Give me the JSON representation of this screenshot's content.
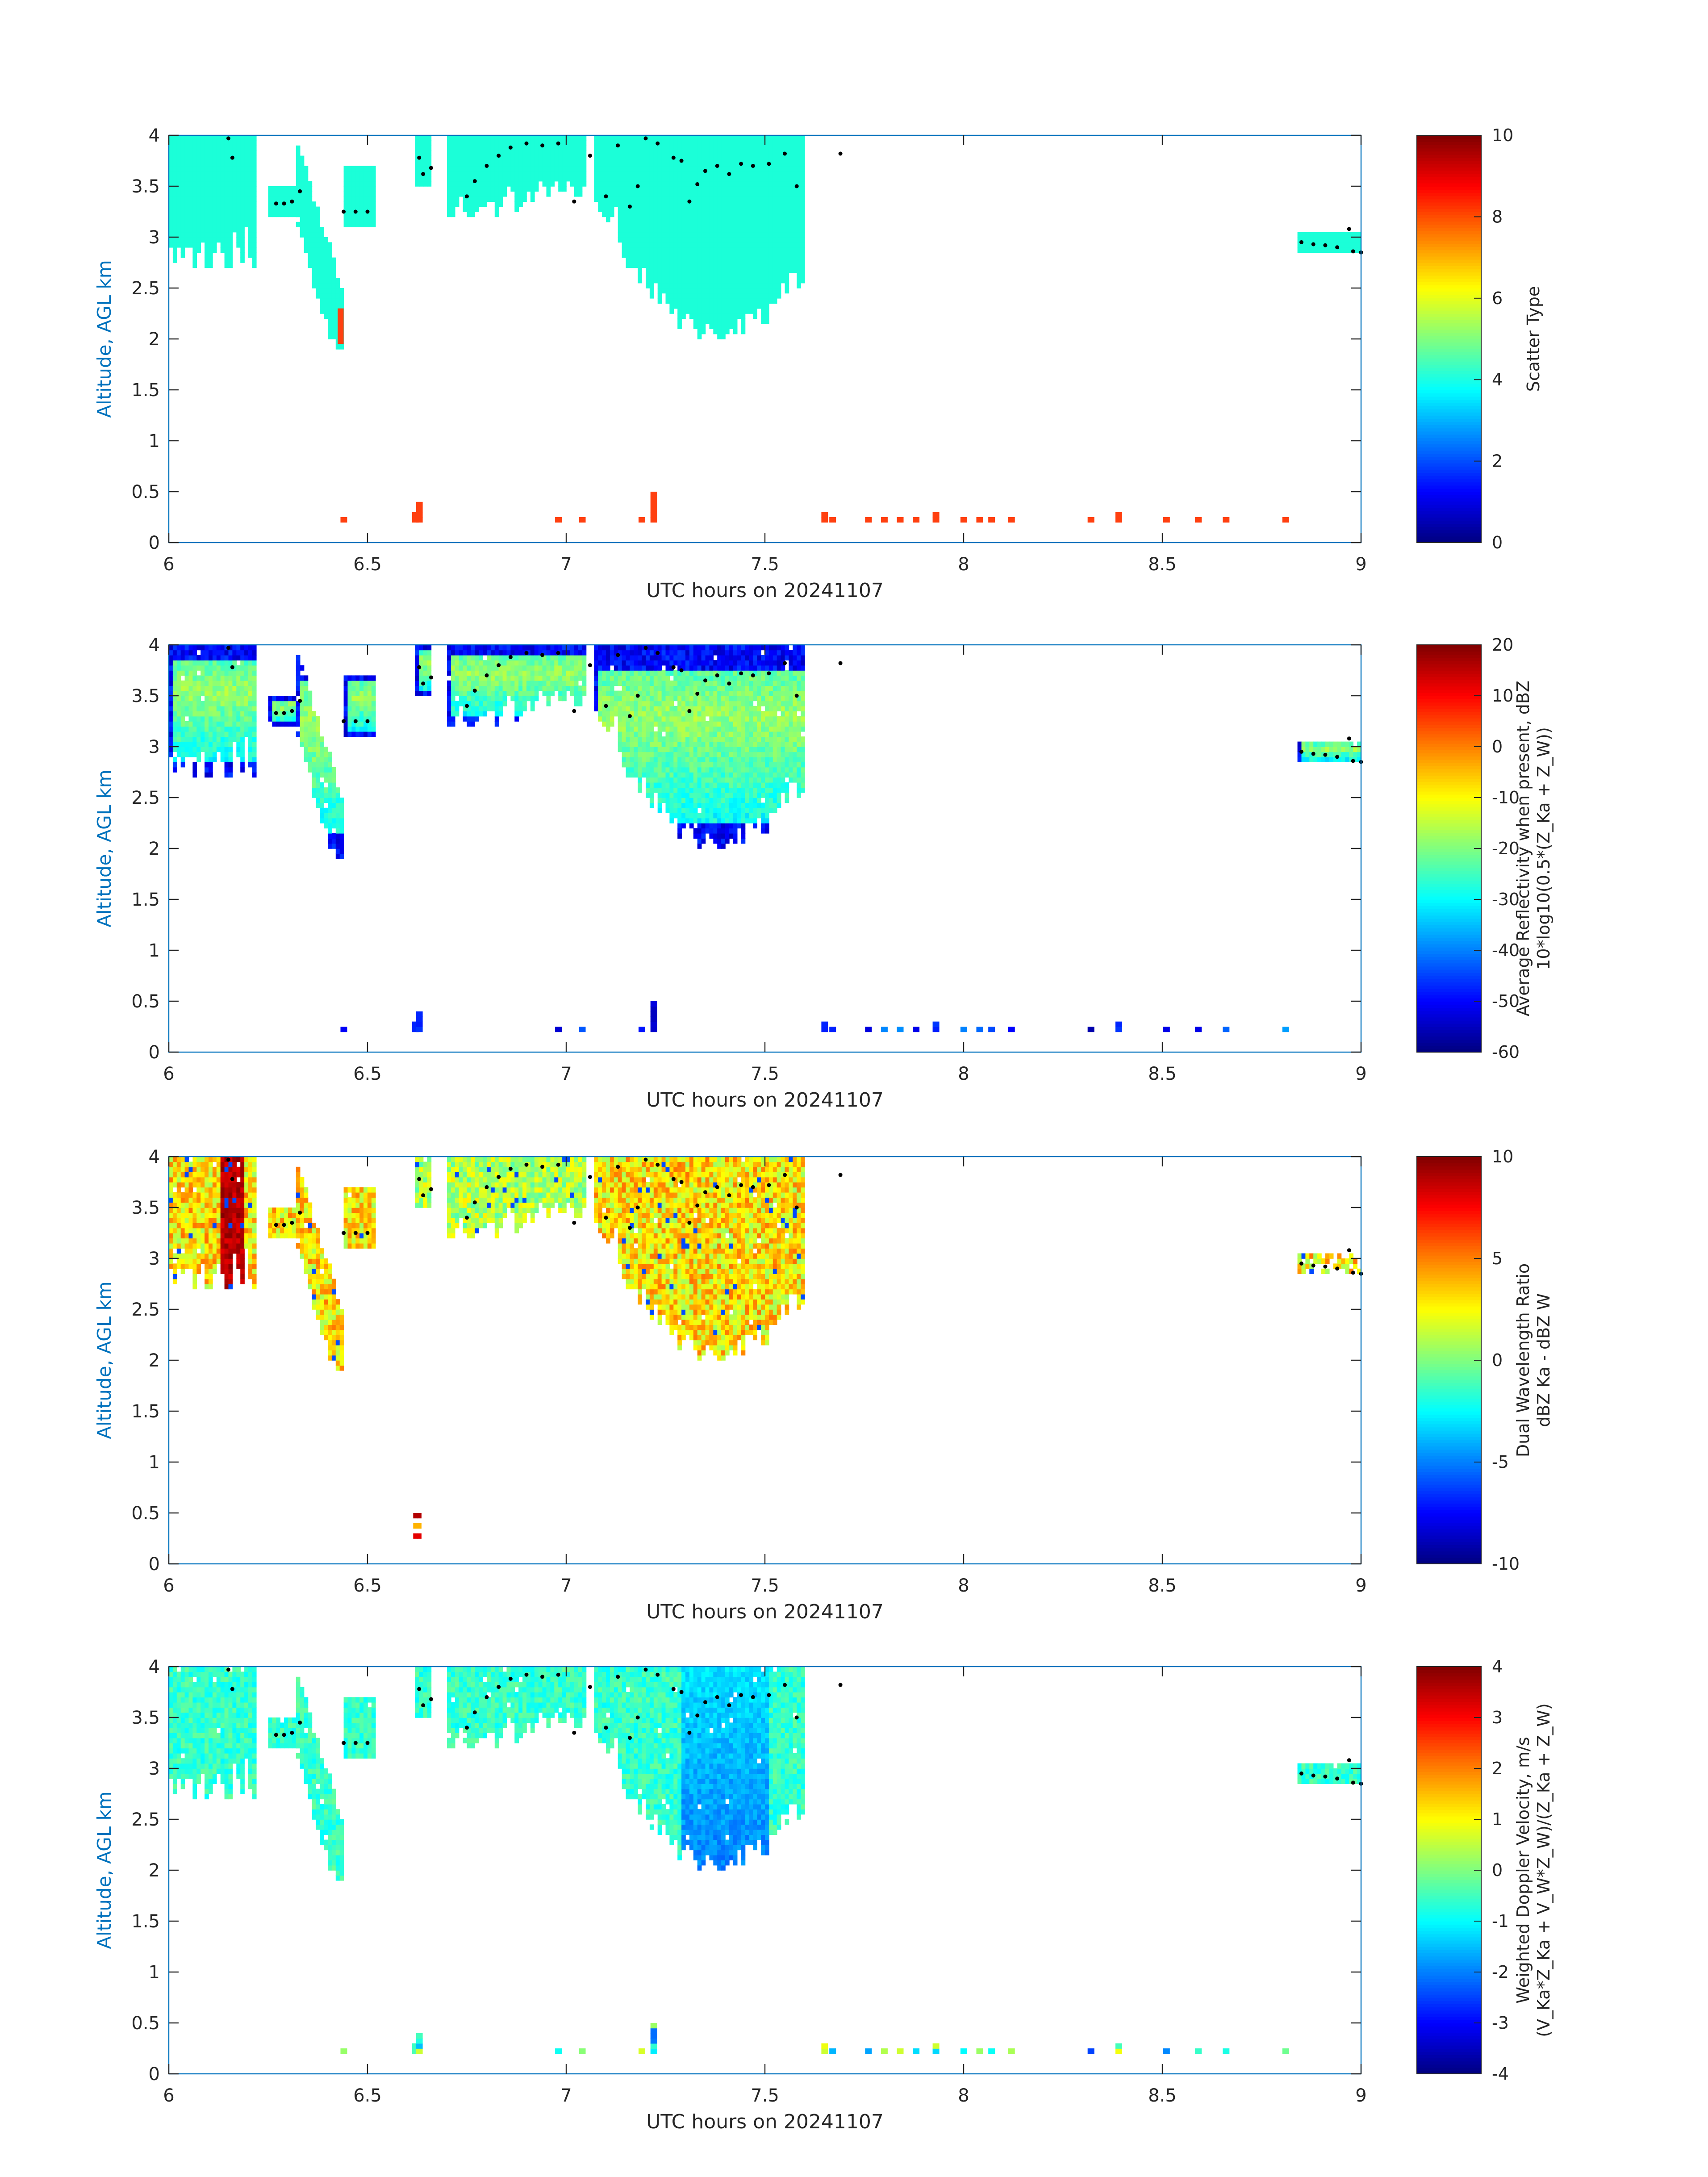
{
  "chart_data": [
    {
      "type": "heatmap",
      "panel": "scatter-type",
      "xlabel": "UTC hours on 20241107",
      "ylabel": "Altitude, AGL km",
      "xlim": [
        6,
        9
      ],
      "ylim": [
        0,
        4
      ],
      "xticks": [
        "6",
        "6.5",
        "7",
        "7.5",
        "8",
        "8.5",
        "9"
      ],
      "yticks": [
        "0",
        "0.5",
        "1",
        "1.5",
        "2",
        "2.5",
        "3",
        "3.5",
        "4"
      ],
      "colorbar": {
        "label_lines": [
          "Scatter Type"
        ],
        "clim": [
          0,
          10
        ],
        "ticks": [
          "0",
          "2",
          "4",
          "6",
          "8",
          "10"
        ],
        "colormap": "jet"
      },
      "field": "scatter",
      "cloud_tops": true
    },
    {
      "type": "heatmap",
      "panel": "reflectivity",
      "xlabel": "UTC hours on 20241107",
      "ylabel": "Altitude, AGL km",
      "xlim": [
        6,
        9
      ],
      "ylim": [
        0,
        4
      ],
      "xticks": [
        "6",
        "6.5",
        "7",
        "7.5",
        "8",
        "8.5",
        "9"
      ],
      "yticks": [
        "0",
        "0.5",
        "1",
        "1.5",
        "2",
        "2.5",
        "3",
        "3.5",
        "4"
      ],
      "colorbar": {
        "label_lines": [
          "Average Reflectivity when present, dBZ",
          "10*log10(0.5*(Z_Ka + Z_W))"
        ],
        "clim": [
          -60,
          20
        ],
        "ticks": [
          "-60",
          "-50",
          "-40",
          "-30",
          "-20",
          "-10",
          "0",
          "10",
          "20"
        ],
        "colormap": "jet"
      },
      "field": "reflectivity",
      "cloud_tops": true
    },
    {
      "type": "heatmap",
      "panel": "dual-wavelength-ratio",
      "xlabel": "UTC hours on 20241107",
      "ylabel": "Altitude, AGL km",
      "xlim": [
        6,
        9
      ],
      "ylim": [
        0,
        4
      ],
      "xticks": [
        "6",
        "6.5",
        "7",
        "7.5",
        "8",
        "8.5",
        "9"
      ],
      "yticks": [
        "0",
        "0.5",
        "1",
        "1.5",
        "2",
        "2.5",
        "3",
        "3.5",
        "4"
      ],
      "colorbar": {
        "label_lines": [
          "Dual Wavelength Ratio",
          "dBZ Ka - dBZ W"
        ],
        "clim": [
          -10,
          10
        ],
        "ticks": [
          "-10",
          "-5",
          "0",
          "5",
          "10"
        ],
        "colormap": "jet"
      },
      "field": "dwr",
      "cloud_tops": true
    },
    {
      "type": "heatmap",
      "panel": "doppler-velocity",
      "xlabel": "UTC hours on 20241107",
      "ylabel": "Altitude, AGL km",
      "xlim": [
        6,
        9
      ],
      "ylim": [
        0,
        4
      ],
      "xticks": [
        "6",
        "6.5",
        "7",
        "7.5",
        "8",
        "8.5",
        "9"
      ],
      "yticks": [
        "0",
        "0.5",
        "1",
        "1.5",
        "2",
        "2.5",
        "3",
        "3.5",
        "4"
      ],
      "colorbar": {
        "label_lines": [
          "Weighted Doppler Velocity, m/s",
          "(V_Ka*Z_Ka + V_W*Z_W)/(Z_Ka + Z_W)"
        ],
        "clim": [
          -4,
          4
        ],
        "ticks": [
          "-4",
          "-3",
          "-2",
          "-1",
          "0",
          "1",
          "2",
          "3",
          "4"
        ],
        "colormap": "jet"
      },
      "field": "velocity",
      "cloud_tops": true
    }
  ],
  "cloud_regions": [
    {
      "t": [
        6.0,
        6.22
      ],
      "bottom": 2.7,
      "top": 4.0
    },
    {
      "t": [
        6.25,
        6.33
      ],
      "bottom": 3.2,
      "top": 3.5
    },
    {
      "t": [
        6.32,
        6.44
      ],
      "bottom": 1.9,
      "top": 3.9
    },
    {
      "t": [
        6.44,
        6.52
      ],
      "bottom": 3.1,
      "top": 3.7
    },
    {
      "t": [
        6.62,
        6.66
      ],
      "bottom": 3.5,
      "top": 4.0
    },
    {
      "t": [
        6.7,
        7.05
      ],
      "bottom": 3.2,
      "top": 4.0
    },
    {
      "t": [
        7.07,
        7.6
      ],
      "bottom": 2.0,
      "top": 4.0
    },
    {
      "t": [
        8.84,
        9.0
      ],
      "bottom": 2.85,
      "top": 3.05
    }
  ],
  "low_echoes": [
    {
      "t": 6.44,
      "h": 0.25
    },
    {
      "t": 6.62,
      "h": 0.3
    },
    {
      "t": 6.63,
      "h": 0.4
    },
    {
      "t": 6.98,
      "h": 0.25
    },
    {
      "t": 7.04,
      "h": 0.25
    },
    {
      "t": 7.19,
      "h": 0.25
    },
    {
      "t": 7.22,
      "h": 0.5
    },
    {
      "t": 7.65,
      "h": 0.3
    },
    {
      "t": 7.67,
      "h": 0.25
    },
    {
      "t": 7.76,
      "h": 0.22
    },
    {
      "t": 7.8,
      "h": 0.25
    },
    {
      "t": 7.84,
      "h": 0.25
    },
    {
      "t": 7.88,
      "h": 0.22
    },
    {
      "t": 7.93,
      "h": 0.3
    },
    {
      "t": 8.0,
      "h": 0.25
    },
    {
      "t": 8.04,
      "h": 0.22
    },
    {
      "t": 8.07,
      "h": 0.22
    },
    {
      "t": 8.12,
      "h": 0.22
    },
    {
      "t": 8.32,
      "h": 0.25
    },
    {
      "t": 8.39,
      "h": 0.3
    },
    {
      "t": 8.51,
      "h": 0.25
    },
    {
      "t": 8.59,
      "h": 0.22
    },
    {
      "t": 8.66,
      "h": 0.22
    },
    {
      "t": 8.81,
      "h": 0.22
    }
  ],
  "cloud_top_dots": [
    [
      6.15,
      3.97
    ],
    [
      6.16,
      3.78
    ],
    [
      6.27,
      3.33
    ],
    [
      6.29,
      3.33
    ],
    [
      6.31,
      3.35
    ],
    [
      6.33,
      3.45
    ],
    [
      6.44,
      3.25
    ],
    [
      6.47,
      3.25
    ],
    [
      6.5,
      3.25
    ],
    [
      6.63,
      3.78
    ],
    [
      6.64,
      3.62
    ],
    [
      6.66,
      3.68
    ],
    [
      6.75,
      3.4
    ],
    [
      6.77,
      3.55
    ],
    [
      6.8,
      3.7
    ],
    [
      6.83,
      3.8
    ],
    [
      6.86,
      3.88
    ],
    [
      6.9,
      3.92
    ],
    [
      6.94,
      3.9
    ],
    [
      6.98,
      3.92
    ],
    [
      7.02,
      3.35
    ],
    [
      7.06,
      3.8
    ],
    [
      7.1,
      3.4
    ],
    [
      7.13,
      3.9
    ],
    [
      7.16,
      3.3
    ],
    [
      7.18,
      3.5
    ],
    [
      7.2,
      3.97
    ],
    [
      7.23,
      3.92
    ],
    [
      7.27,
      3.78
    ],
    [
      7.29,
      3.75
    ],
    [
      7.31,
      3.35
    ],
    [
      7.33,
      3.52
    ],
    [
      7.35,
      3.65
    ],
    [
      7.38,
      3.7
    ],
    [
      7.41,
      3.62
    ],
    [
      7.44,
      3.72
    ],
    [
      7.47,
      3.7
    ],
    [
      7.51,
      3.72
    ],
    [
      7.55,
      3.82
    ],
    [
      7.58,
      3.5
    ],
    [
      7.69,
      3.82
    ],
    [
      8.85,
      2.95
    ],
    [
      8.88,
      2.93
    ],
    [
      8.91,
      2.92
    ],
    [
      8.94,
      2.9
    ],
    [
      8.97,
      3.08
    ],
    [
      8.98,
      2.86
    ],
    [
      9.0,
      2.85
    ]
  ],
  "colors": {
    "axis": "#0072BD",
    "text": "#262626",
    "scatter_cloud": "#1BFFD8",
    "scatter_precip": "#FF4010",
    "dot": "#000000"
  }
}
